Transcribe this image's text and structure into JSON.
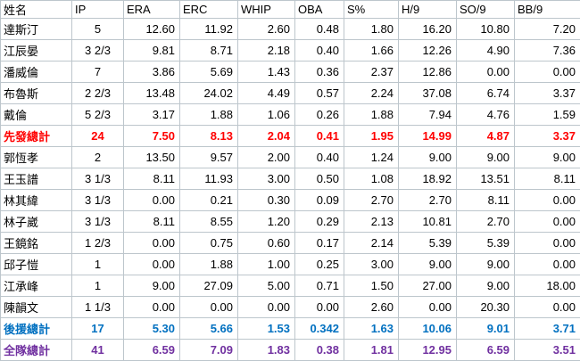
{
  "table": {
    "columns": [
      "姓名",
      "IP",
      "ERA",
      "ERC",
      "WHIP",
      "OBA",
      "S%",
      "H/9",
      "SO/9",
      "BB/9"
    ],
    "rows": [
      {
        "name": "達斯汀",
        "type": "player",
        "cells": [
          "5",
          "12.60",
          "11.92",
          "2.60",
          "0.48",
          "1.80",
          "16.20",
          "10.80",
          "7.20"
        ]
      },
      {
        "name": "江辰晏",
        "type": "player",
        "cells": [
          "3 2/3",
          "9.81",
          "8.71",
          "2.18",
          "0.40",
          "1.66",
          "12.26",
          "4.90",
          "7.36"
        ]
      },
      {
        "name": "潘威倫",
        "type": "player",
        "cells": [
          "7",
          "3.86",
          "5.69",
          "1.43",
          "0.36",
          "2.37",
          "12.86",
          "0.00",
          "0.00"
        ]
      },
      {
        "name": "布魯斯",
        "type": "player",
        "cells": [
          "2 2/3",
          "13.48",
          "24.02",
          "4.49",
          "0.57",
          "2.24",
          "37.08",
          "6.74",
          "3.37"
        ]
      },
      {
        "name": "戴倫",
        "type": "player",
        "cells": [
          "5 2/3",
          "3.17",
          "1.88",
          "1.06",
          "0.26",
          "1.88",
          "7.94",
          "4.76",
          "1.59"
        ]
      },
      {
        "name": "先發總計",
        "type": "starter-total",
        "cells": [
          "24",
          "7.50",
          "8.13",
          "2.04",
          "0.41",
          "1.95",
          "14.99",
          "4.87",
          "3.37"
        ]
      },
      {
        "name": "郭恆孝",
        "type": "player",
        "cells": [
          "2",
          "13.50",
          "9.57",
          "2.00",
          "0.40",
          "1.24",
          "9.00",
          "9.00",
          "9.00"
        ]
      },
      {
        "name": "王玉譜",
        "type": "player",
        "cells": [
          "3 1/3",
          "8.11",
          "11.93",
          "3.00",
          "0.50",
          "1.08",
          "18.92",
          "13.51",
          "8.11"
        ]
      },
      {
        "name": "林其緯",
        "type": "player",
        "cells": [
          "3 1/3",
          "0.00",
          "0.21",
          "0.30",
          "0.09",
          "2.70",
          "2.70",
          "8.11",
          "0.00"
        ]
      },
      {
        "name": "林子崴",
        "type": "player",
        "cells": [
          "3 1/3",
          "8.11",
          "8.55",
          "1.20",
          "0.29",
          "2.13",
          "10.81",
          "2.70",
          "0.00"
        ]
      },
      {
        "name": "王鏡銘",
        "type": "player",
        "cells": [
          "1 2/3",
          "0.00",
          "0.75",
          "0.60",
          "0.17",
          "2.14",
          "5.39",
          "5.39",
          "0.00"
        ]
      },
      {
        "name": "邱子愷",
        "type": "player",
        "cells": [
          "1",
          "0.00",
          "1.88",
          "1.00",
          "0.25",
          "3.00",
          "9.00",
          "9.00",
          "0.00"
        ]
      },
      {
        "name": "江承峰",
        "type": "player",
        "cells": [
          "1",
          "9.00",
          "27.09",
          "5.00",
          "0.71",
          "1.50",
          "27.00",
          "9.00",
          "18.00"
        ]
      },
      {
        "name": "陳韻文",
        "type": "player",
        "cells": [
          "1 1/3",
          "0.00",
          "0.00",
          "0.00",
          "0.00",
          "2.60",
          "0.00",
          "20.30",
          "0.00"
        ]
      },
      {
        "name": "後援總計",
        "type": "relief-total",
        "cells": [
          "17",
          "5.30",
          "5.66",
          "1.53",
          "0.342",
          "1.63",
          "10.06",
          "9.01",
          "3.71"
        ]
      },
      {
        "name": "全隊總計",
        "type": "team-total",
        "cells": [
          "41",
          "6.59",
          "7.09",
          "1.83",
          "0.38",
          "1.81",
          "12.95",
          "6.59",
          "3.51"
        ]
      }
    ]
  },
  "colors": {
    "starter_total": "#ff0000",
    "relief_total": "#0070c0",
    "team_total": "#7030a0",
    "grid": "#bdc6cc"
  }
}
